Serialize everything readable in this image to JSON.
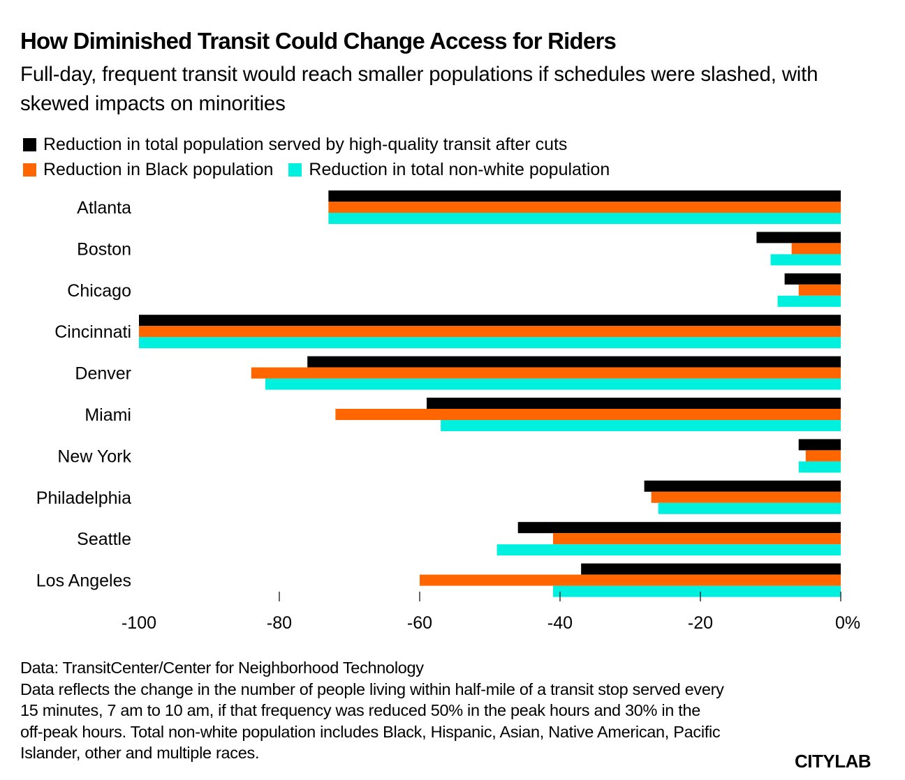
{
  "header": {
    "title": "How Diminished Transit Could Change Access for Riders",
    "subtitle": "Full-day, frequent transit would reach smaller populations if schedules were slashed, with skewed impacts on minorities"
  },
  "footer": {
    "source": "Data: TransitCenter/Center for Neighborhood Technology",
    "note": "Data reflects the change in the number of people living within half-mile of a transit stop served every 15 minutes, 7 am to 10 am, if that frequency was reduced 50% in the peak hours and 30% in the off-peak hours. Total non-white population includes Black, Hispanic, Asian, Native American, Pacific Islander, other and multiple races.",
    "logo": "CITYLAB"
  },
  "chart_data": {
    "type": "bar",
    "orientation": "horizontal",
    "title": "How Diminished Transit Could Change Access for Riders",
    "xlabel": "",
    "ylabel": "",
    "xlim": [
      -100,
      0
    ],
    "x_ticks": [
      -100,
      -80,
      -60,
      -40,
      -20,
      0
    ],
    "x_tick_labels": [
      "-100",
      "-80",
      "-60",
      "-40",
      "-20",
      "0%"
    ],
    "grid": false,
    "legend_position": "top-left",
    "categories": [
      "Atlanta",
      "Boston",
      "Chicago",
      "Cincinnati",
      "Denver",
      "Miami",
      "New York",
      "Philadelphia",
      "Seattle",
      "Los Angeles"
    ],
    "series": [
      {
        "name": "Reduction in total population served by high-quality transit after cuts",
        "color": "#000000",
        "values": [
          -73,
          -12,
          -8,
          -100,
          -76,
          -59,
          -6,
          -28,
          -46,
          -37
        ]
      },
      {
        "name": "Reduction in Black population",
        "color": "#ff6600",
        "values": [
          -73,
          -7,
          -6,
          -100,
          -84,
          -72,
          -5,
          -27,
          -41,
          -60
        ]
      },
      {
        "name": "Reduction in total non-white population",
        "color": "#00f0e0",
        "values": [
          -73,
          -10,
          -9,
          -100,
          -82,
          -57,
          -6,
          -26,
          -49,
          -41
        ]
      }
    ]
  }
}
